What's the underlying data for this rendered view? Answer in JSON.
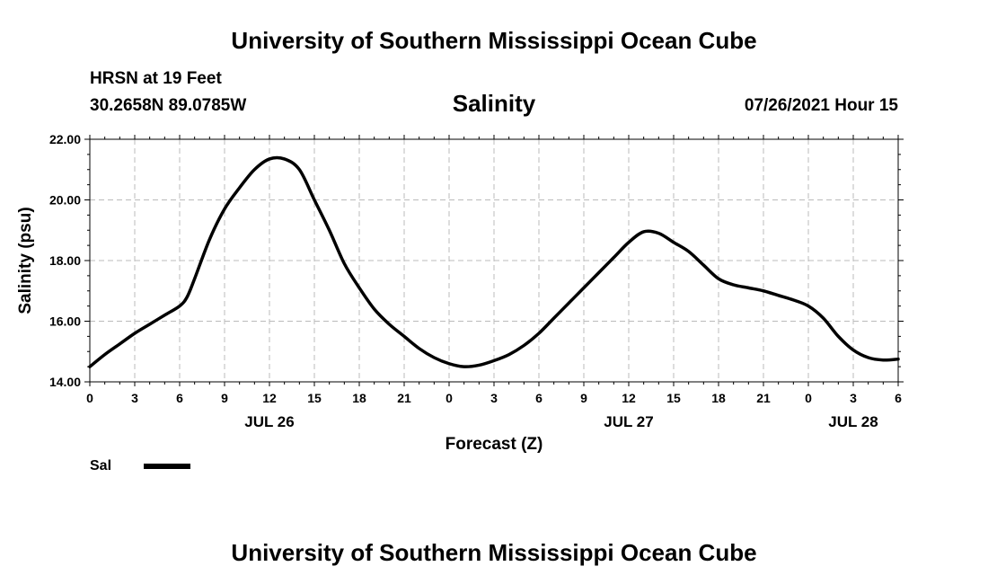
{
  "header": {
    "title": "University of Southern Mississippi Ocean Cube",
    "station": "HRSN at 19 Feet",
    "coords": "30.2658N  89.0785W",
    "variable_title": "Salinity",
    "datetime": "07/26/2021 Hour 15"
  },
  "footer": {
    "title": "University of Southern Mississippi Ocean Cube"
  },
  "legend": {
    "label": "Sal"
  },
  "chart_data": {
    "type": "line",
    "xlabel": "Forecast (Z)",
    "ylabel": "Salinity (psu)",
    "xlim": [
      0,
      54
    ],
    "ylim": [
      14,
      22
    ],
    "xtick_labels": [
      "0",
      "3",
      "6",
      "9",
      "12",
      "15",
      "18",
      "21",
      "0",
      "3",
      "6",
      "9",
      "12",
      "15",
      "18",
      "21",
      "0",
      "3",
      "6"
    ],
    "ytick_labels": [
      "14.00",
      "16.00",
      "18.00",
      "20.00",
      "22.00"
    ],
    "date_labels": [
      {
        "x": 12,
        "label": "JUL 26"
      },
      {
        "x": 36,
        "label": "JUL 27"
      },
      {
        "x": 51,
        "label": "JUL 28"
      }
    ],
    "grid": true,
    "line_color": "#000000",
    "series": [
      {
        "name": "Sal",
        "x": [
          0,
          1,
          2,
          3,
          4,
          5,
          6,
          6.5,
          7,
          8,
          9,
          10,
          11,
          12,
          13,
          14,
          15,
          16,
          17,
          18,
          19,
          20,
          21,
          22,
          23,
          24,
          25,
          26,
          27,
          28,
          29,
          30,
          31,
          32,
          33,
          34,
          35,
          36,
          37,
          38,
          39,
          40,
          41,
          42,
          43,
          44,
          45,
          46,
          47,
          48,
          49,
          50,
          51,
          52,
          53,
          54
        ],
        "values": [
          14.5,
          14.9,
          15.25,
          15.6,
          15.9,
          16.2,
          16.5,
          16.8,
          17.4,
          18.7,
          19.7,
          20.4,
          21.0,
          21.35,
          21.35,
          21.0,
          20.0,
          19.0,
          17.9,
          17.1,
          16.4,
          15.9,
          15.5,
          15.1,
          14.8,
          14.6,
          14.5,
          14.55,
          14.7,
          14.9,
          15.2,
          15.6,
          16.1,
          16.6,
          17.1,
          17.6,
          18.1,
          18.6,
          18.95,
          18.9,
          18.6,
          18.3,
          17.85,
          17.4,
          17.2,
          17.1,
          17.0,
          16.85,
          16.7,
          16.5,
          16.1,
          15.5,
          15.05,
          14.8,
          14.72,
          14.75
        ]
      }
    ]
  }
}
